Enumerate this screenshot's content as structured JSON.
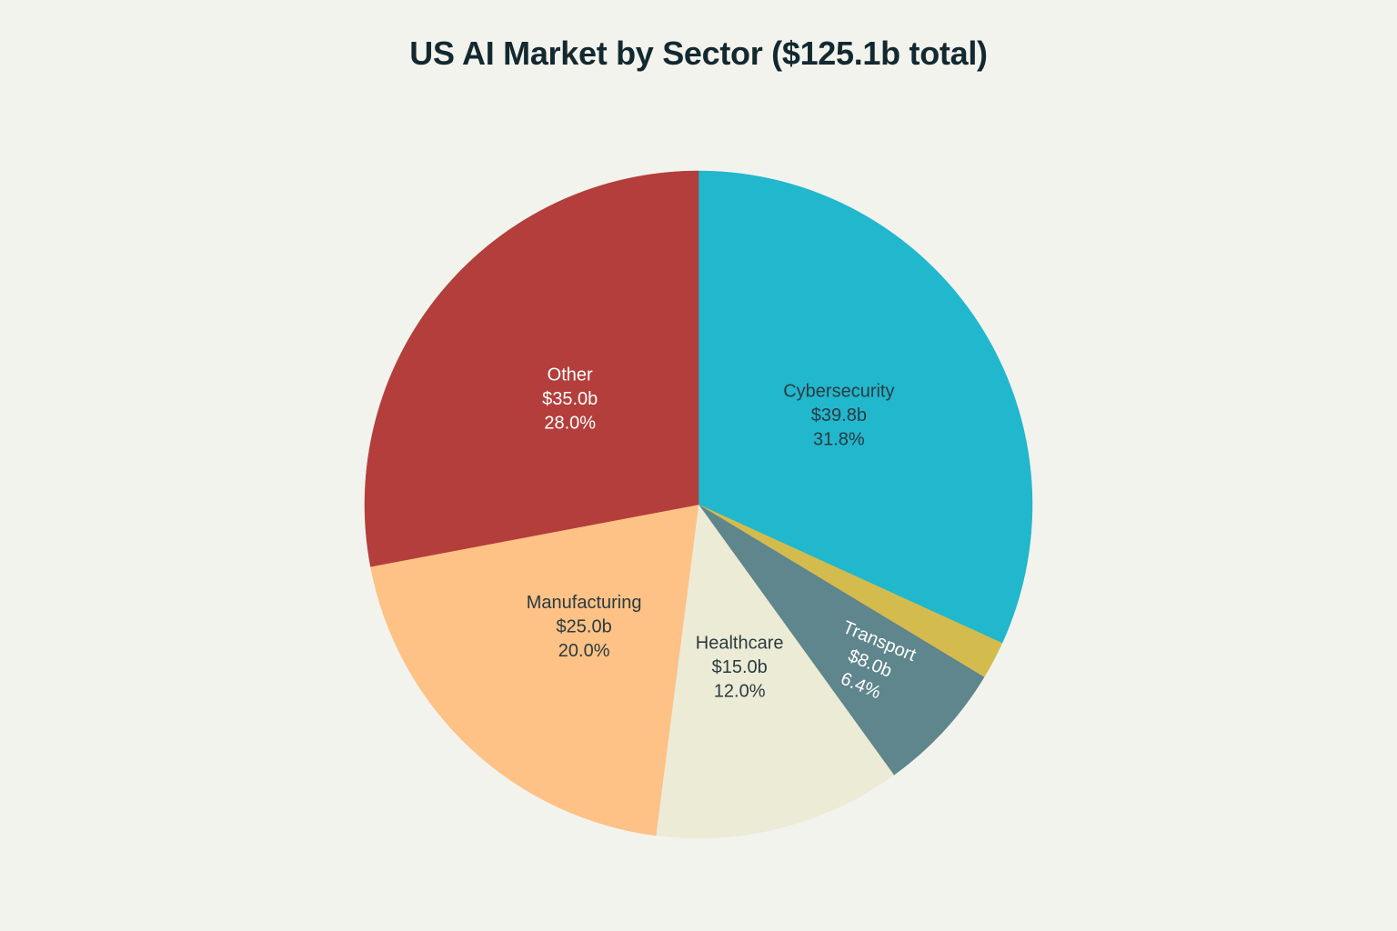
{
  "chart_data": {
    "type": "pie",
    "title": "US AI Market by Sector ($125.1b total)",
    "start_angle_deg": 0,
    "direction": "clockwise",
    "slices": [
      {
        "name": "Cybersecurity",
        "value": 39.8,
        "value_label": "$39.8b",
        "pct_label": "31.8%",
        "color": "#21b7cd",
        "label_color": "#2a3b40"
      },
      {
        "name": "",
        "value": 2.3,
        "value_label": "",
        "pct_label": "",
        "color": "#d4bb4d",
        "label_color": "#2a3b40"
      },
      {
        "name": "Transport",
        "value": 8.0,
        "value_label": "$8.0b",
        "pct_label": "6.4%",
        "color": "#5e868c",
        "label_color": "#ffffff"
      },
      {
        "name": "Healthcare",
        "value": 15.0,
        "value_label": "$15.0b",
        "pct_label": "12.0%",
        "color": "#ecebd6",
        "label_color": "#2a3b40"
      },
      {
        "name": "Manufacturing",
        "value": 25.0,
        "value_label": "$25.0b",
        "pct_label": "20.0%",
        "color": "#fec186",
        "label_color": "#2a3b40"
      },
      {
        "name": "Other",
        "value": 35.0,
        "value_label": "$35.0b",
        "pct_label": "28.0%",
        "color": "#b33e3b",
        "label_color": "#ffffff"
      }
    ]
  }
}
